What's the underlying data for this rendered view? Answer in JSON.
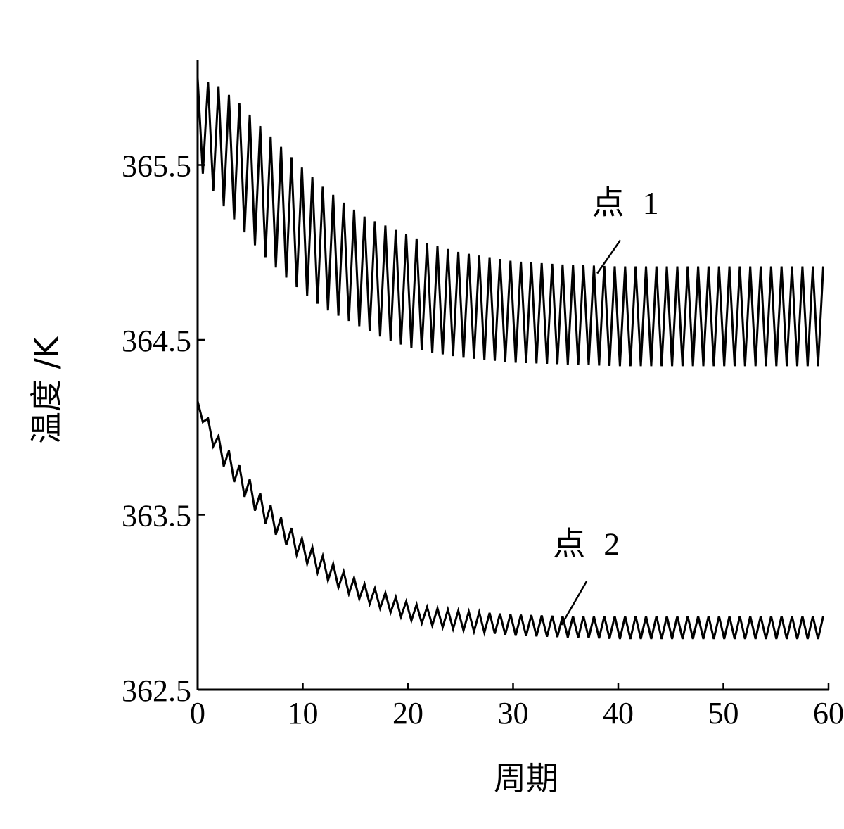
{
  "chart_data": {
    "type": "line",
    "title": "",
    "xlabel": "周期",
    "ylabel": "温度 /K",
    "xlim": [
      0,
      60
    ],
    "ylim": [
      362.5,
      366.2
    ],
    "x_ticks": [
      0,
      10,
      20,
      30,
      40,
      50,
      60
    ],
    "x_tick_labels": [
      "0",
      "10",
      "20",
      "30",
      "40",
      "50",
      "60"
    ],
    "y_ticks": [
      362.5,
      363.5,
      364.5,
      365.5
    ],
    "y_tick_labels": [
      "362.5",
      "363.5",
      "364.5",
      "365.5"
    ],
    "grid": false,
    "legend": "none",
    "series": [
      {
        "name": "点 1",
        "label_text": "点",
        "label_num": "1",
        "color": "#000000",
        "cycles": 60,
        "envelope_x": [
          0,
          2,
          4,
          6,
          8,
          10,
          12,
          14,
          16,
          18,
          20,
          22,
          25,
          30,
          35,
          40,
          45,
          50,
          55,
          60
        ],
        "envelope_max": [
          366.0,
          365.95,
          365.85,
          365.72,
          365.6,
          365.48,
          365.37,
          365.28,
          365.2,
          365.15,
          365.1,
          365.05,
          365.0,
          364.95,
          364.93,
          364.92,
          364.92,
          364.92,
          364.92,
          364.92
        ],
        "envelope_min": [
          365.5,
          365.3,
          365.15,
          365.0,
          364.88,
          364.77,
          364.68,
          364.62,
          364.56,
          364.5,
          364.46,
          364.43,
          364.4,
          364.37,
          364.36,
          364.35,
          364.35,
          364.35,
          364.35,
          364.35
        ],
        "annotation": {
          "text_x": 37.5,
          "text_y": 365.22,
          "leader_start": [
            40.2,
            365.07
          ],
          "leader_end": [
            38.0,
            364.88
          ]
        }
      },
      {
        "name": "点 2",
        "label_text": "点",
        "label_num": "2",
        "color": "#000000",
        "cycles": 60,
        "envelope_x": [
          0,
          2,
          4,
          6,
          8,
          10,
          12,
          14,
          16,
          18,
          20,
          22,
          25,
          30,
          35,
          40,
          45,
          50,
          55,
          60
        ],
        "envelope_max": [
          364.15,
          363.95,
          363.78,
          363.62,
          363.48,
          363.36,
          363.26,
          363.17,
          363.1,
          363.05,
          363.0,
          362.97,
          362.95,
          362.93,
          362.92,
          362.92,
          362.92,
          362.92,
          362.92,
          362.92
        ],
        "envelope_min": [
          364.1,
          363.82,
          363.64,
          363.48,
          363.35,
          363.24,
          363.14,
          363.06,
          363.0,
          362.95,
          362.9,
          362.87,
          362.84,
          362.81,
          362.8,
          362.79,
          362.79,
          362.79,
          362.79,
          362.79
        ],
        "annotation": {
          "text_x": 33.8,
          "text_y": 363.27,
          "leader_start": [
            37.0,
            363.12
          ],
          "leader_end": [
            34.6,
            362.87
          ]
        }
      }
    ]
  }
}
